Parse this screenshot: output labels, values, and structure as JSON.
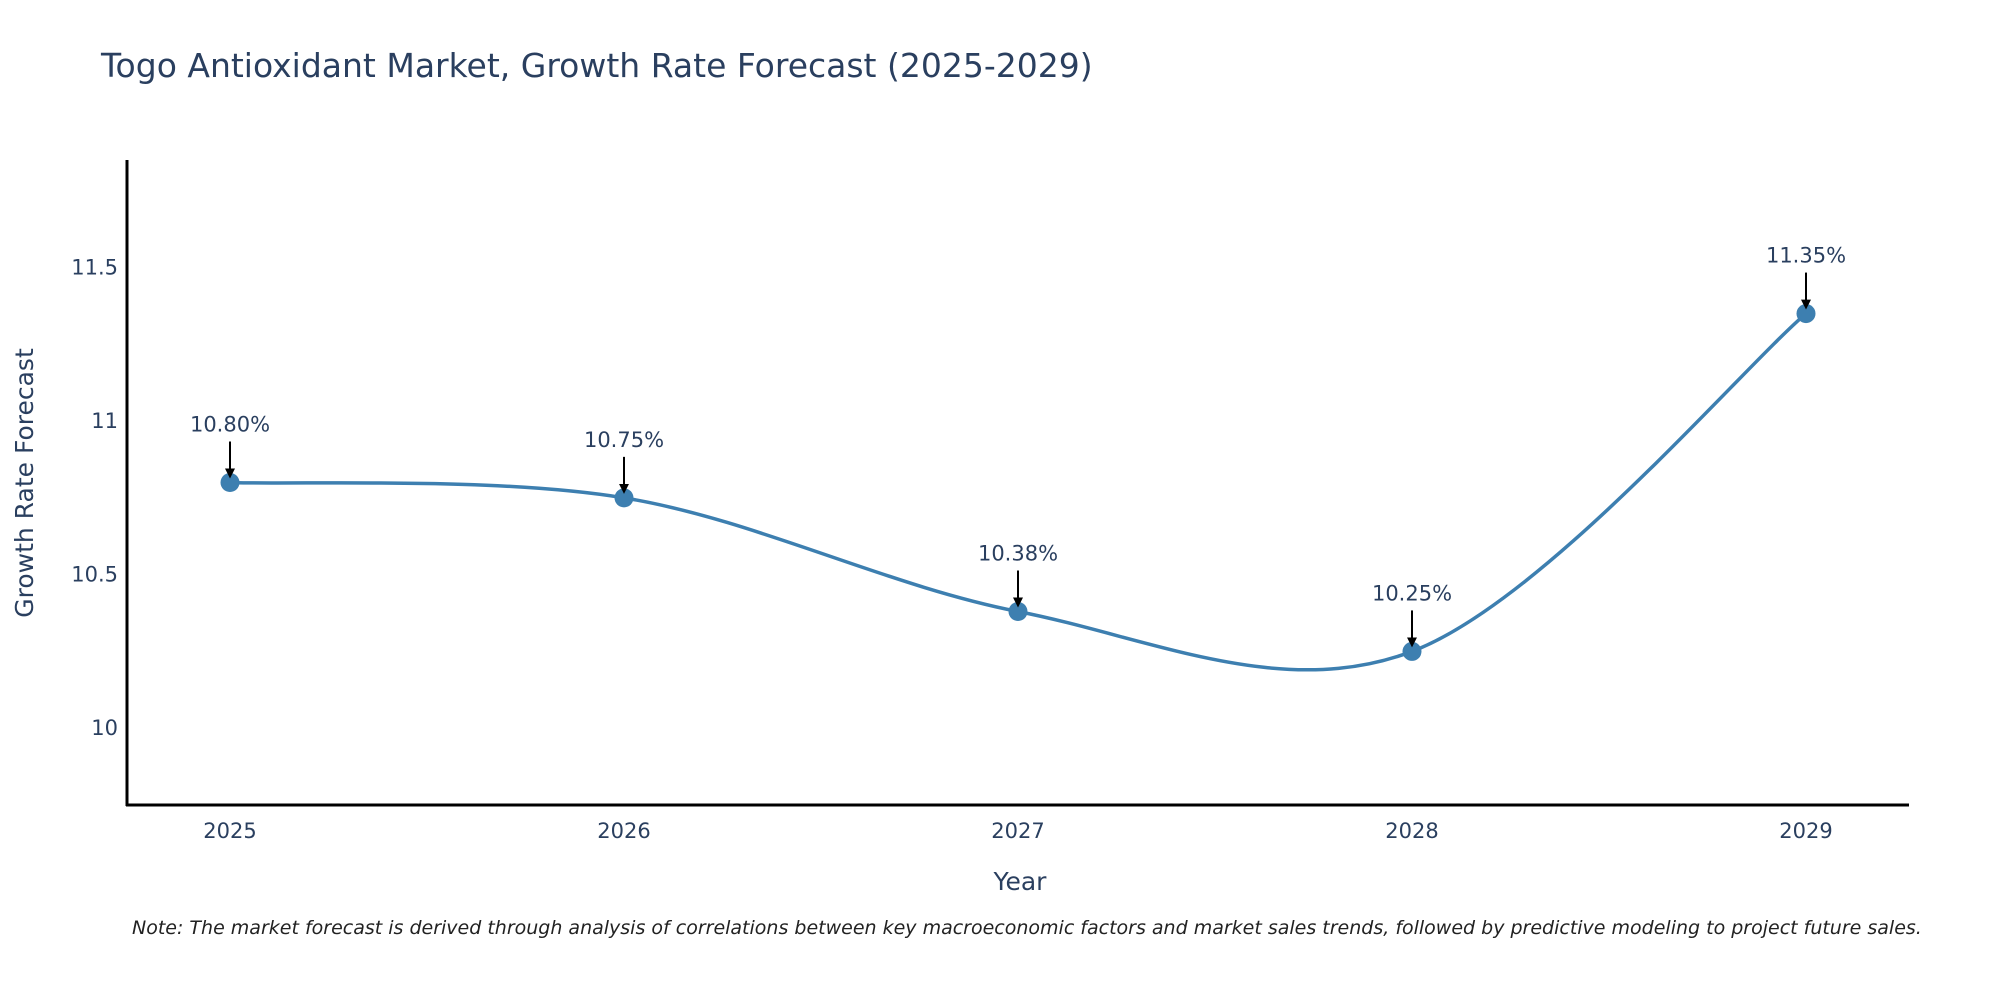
{
  "chart_data": {
    "type": "line",
    "title": "Togo Antioxidant Market, Growth Rate Forecast (2025-2029)",
    "xlabel": "Year",
    "ylabel": "Growth Rate Forecast",
    "categories": [
      "2025",
      "2026",
      "2027",
      "2028",
      "2029"
    ],
    "values": [
      10.8,
      10.75,
      10.38,
      10.25,
      11.35
    ],
    "data_labels": [
      "10.80%",
      "10.75%",
      "10.38%",
      "10.25%",
      "11.35%"
    ],
    "ylim": [
      9.75,
      11.85
    ],
    "yticks": [
      10,
      10.5,
      11,
      11.5
    ],
    "ytick_labels": [
      "10",
      "10.5",
      "11",
      "11.5"
    ],
    "grid": false,
    "line_smoothing": "spline",
    "series_color": "#3d7fb0",
    "note": "Note: The market forecast is derived through analysis of correlations between key macroeconomic factors and market sales trends, followed by predictive modeling to project future sales."
  }
}
